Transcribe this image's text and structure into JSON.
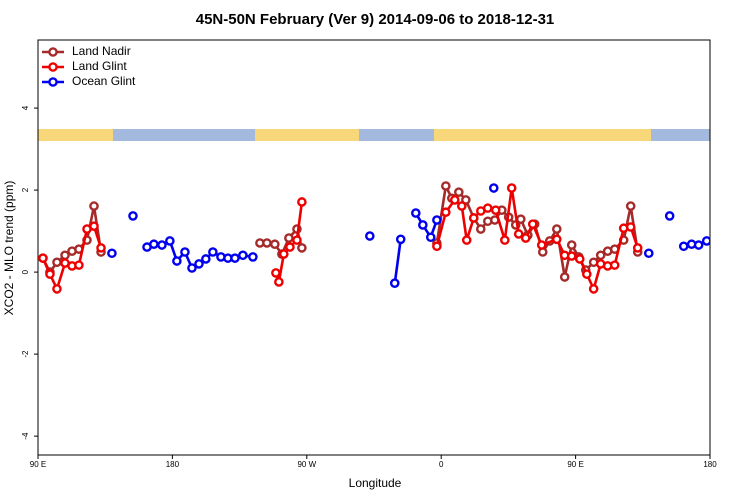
{
  "chart_data": {
    "type": "line",
    "title": "45N-50N February (Ver 9)   2014-09-06 to 2018-12-31",
    "xlabel": "Longitude",
    "ylabel": "XCO2 - MLO trend (ppm)",
    "xlim": [
      90,
      540
    ],
    "ylim": [
      -4.46,
      5.66
    ],
    "xticks": [
      {
        "value": 90,
        "label": "90 E"
      },
      {
        "value": 180,
        "label": "180"
      },
      {
        "value": 270,
        "label": "90 W"
      },
      {
        "value": 360,
        "label": "0"
      },
      {
        "value": 450,
        "label": "90 E"
      },
      {
        "value": 540,
        "label": "180"
      }
    ],
    "yticks": [
      -4,
      -2,
      0,
      2,
      4
    ],
    "legend": "top-left",
    "series": [
      {
        "name": "Land Nadir",
        "color": "#a52a2a",
        "x": [
          93.3,
          98.0,
          102.7,
          108.1,
          112.8,
          117.4,
          122.8,
          127.5,
          132.2,
          null,
          238.6,
          243.3,
          248.6,
          253.3,
          258.0,
          263.4,
          266.7,
          null,
          357.1,
          363.1,
          367.1,
          371.8,
          376.5,
          381.8,
          386.5,
          391.2,
          395.9,
          400.6,
          405.2,
          409.9,
          413.3,
          418.0,
          422.6,
          428.0,
          432.7,
          437.4,
          442.7,
          447.4,
          452.1,
          456.8,
          462.1,
          466.8,
          471.5,
          476.2,
          482.2,
          486.9,
          491.6
        ],
        "values": [
          0.34,
          0.0,
          0.24,
          0.41,
          0.51,
          0.56,
          0.78,
          1.61,
          0.49,
          null,
          0.71,
          0.71,
          0.68,
          0.44,
          0.83,
          1.05,
          0.59,
          null,
          0.71,
          2.1,
          1.8,
          1.95,
          1.76,
          1.32,
          1.05,
          1.24,
          1.27,
          1.51,
          1.34,
          1.15,
          1.29,
          0.9,
          1.17,
          0.49,
          0.76,
          1.05,
          -0.12,
          0.66,
          0.37,
          0.05,
          0.24,
          0.41,
          0.51,
          0.56,
          0.78,
          1.61,
          0.49
        ]
      },
      {
        "name": "Land Glint",
        "color": "#ee0000",
        "x": [
          93.3,
          98.0,
          102.7,
          108.1,
          112.8,
          117.4,
          122.8,
          127.5,
          132.2,
          null,
          249.3,
          251.3,
          254.6,
          258.7,
          263.4,
          266.7,
          null,
          357.1,
          363.1,
          369.1,
          373.8,
          377.1,
          381.8,
          386.5,
          391.2,
          396.5,
          402.6,
          407.2,
          411.9,
          416.6,
          421.3,
          427.3,
          437.4,
          442.7,
          447.4,
          452.8,
          457.5,
          462.1,
          466.8,
          471.5,
          476.2,
          482.2,
          486.9,
          491.6
        ],
        "values": [
          0.34,
          -0.05,
          -0.41,
          0.22,
          0.15,
          0.17,
          1.05,
          1.12,
          0.59,
          null,
          -0.02,
          -0.24,
          0.44,
          0.61,
          0.78,
          1.71,
          null,
          0.63,
          1.46,
          1.76,
          1.61,
          0.78,
          1.32,
          1.49,
          1.56,
          1.51,
          0.78,
          2.05,
          0.93,
          0.83,
          1.17,
          0.66,
          0.8,
          0.41,
          0.39,
          0.32,
          -0.05,
          -0.41,
          0.2,
          0.15,
          0.17,
          1.07,
          1.1,
          0.59
        ]
      },
      {
        "name": "Ocean Glint",
        "color": "#0000ee",
        "x": [
          139.5,
          null,
          153.6,
          null,
          163.0,
          167.6,
          173.0,
          178.3,
          183.0,
          188.4,
          193.1,
          197.8,
          202.4,
          207.1,
          212.5,
          217.2,
          221.9,
          227.2,
          233.9,
          null,
          312.2,
          null,
          328.9,
          332.9,
          null,
          343.0,
          347.7,
          353.0,
          357.1,
          null,
          395.2,
          null,
          499.0,
          null,
          513.0,
          null,
          522.4,
          527.7,
          532.4,
          537.8
        ],
        "values": [
          0.46,
          null,
          1.37,
          null,
          0.61,
          0.68,
          0.66,
          0.76,
          0.27,
          0.49,
          0.1,
          0.2,
          0.32,
          0.49,
          0.37,
          0.34,
          0.34,
          0.41,
          0.37,
          null,
          0.88,
          null,
          -0.27,
          0.8,
          null,
          1.44,
          1.15,
          0.85,
          1.27,
          null,
          2.05,
          null,
          0.46,
          null,
          1.37,
          null,
          0.63,
          0.68,
          0.66,
          0.76
        ]
      }
    ]
  }
}
